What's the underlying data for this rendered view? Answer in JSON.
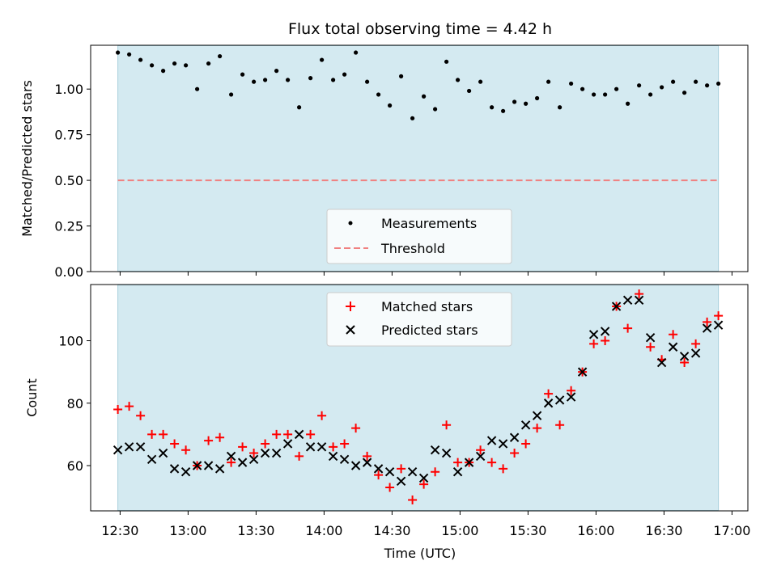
{
  "chart_data": {
    "type": "scatter",
    "title": "Flux total observing time = 4.42 h",
    "xlabel": "Time (UTC)",
    "x_ticks": [
      "12:30",
      "13:00",
      "13:30",
      "14:00",
      "14:30",
      "15:00",
      "15:30",
      "16:00",
      "16:30",
      "17:00"
    ],
    "x_tick_minutes": [
      0,
      30,
      60,
      90,
      120,
      150,
      180,
      210,
      240,
      270
    ],
    "xlim_minutes": [
      -13,
      277
    ],
    "observing_window_minutes": [
      -1,
      264
    ],
    "observing_window_color": "#d4eaf1",
    "top_panel": {
      "ylabel": "Matched/Predicted stars",
      "ylim": [
        0,
        1.24
      ],
      "y_ticks": [
        "0.00",
        "0.25",
        "0.50",
        "0.75",
        "1.00"
      ],
      "y_tick_values": [
        0,
        0.25,
        0.5,
        0.75,
        1.0
      ],
      "legend": {
        "measurements_label": "Measurements",
        "threshold_label": "Threshold",
        "position": "lower center"
      },
      "threshold": 0.5,
      "threshold_color": "#f08080",
      "measurements": {
        "x": [
          -1,
          4,
          9,
          14,
          19,
          24,
          29,
          34,
          39,
          44,
          49,
          54,
          59,
          64,
          69,
          74,
          79,
          84,
          89,
          94,
          99,
          104,
          109,
          114,
          119,
          124,
          129,
          134,
          139,
          144,
          149,
          154,
          159,
          164,
          169,
          174,
          179,
          184,
          189,
          194,
          199,
          204,
          209,
          214,
          219,
          224,
          229,
          234,
          239,
          244,
          249,
          254,
          259,
          264
        ],
        "y": [
          1.2,
          1.19,
          1.16,
          1.13,
          1.1,
          1.14,
          1.13,
          1.0,
          1.14,
          1.18,
          0.97,
          1.08,
          1.04,
          1.05,
          1.1,
          1.05,
          0.9,
          1.06,
          1.16,
          1.05,
          1.08,
          1.2,
          1.04,
          0.97,
          0.91,
          1.07,
          0.84,
          0.96,
          0.89,
          1.15,
          1.05,
          0.99,
          1.04,
          0.9,
          0.88,
          0.93,
          0.92,
          0.95,
          1.04,
          0.9,
          1.03,
          1.0,
          0.97,
          0.97,
          1.0,
          0.92,
          1.02,
          0.97,
          1.01,
          1.04,
          0.98,
          1.04,
          1.02,
          1.03
        ]
      }
    },
    "bottom_panel": {
      "ylabel": "Count",
      "ylim": [
        45.5,
        118
      ],
      "y_ticks": [
        "60",
        "80",
        "100"
      ],
      "y_tick_values": [
        60,
        80,
        100
      ],
      "legend": {
        "matched_label": "Matched stars",
        "predicted_label": "Predicted stars",
        "position": "upper center"
      },
      "matched_color": "#ff0000",
      "predicted_color": "#000000",
      "x": [
        -1,
        4,
        9,
        14,
        19,
        24,
        29,
        34,
        39,
        44,
        49,
        54,
        59,
        64,
        69,
        74,
        79,
        84,
        89,
        94,
        99,
        104,
        109,
        114,
        119,
        124,
        129,
        134,
        139,
        144,
        149,
        154,
        159,
        164,
        169,
        174,
        179,
        184,
        189,
        194,
        199,
        204,
        209,
        214,
        219,
        224,
        229,
        234,
        239,
        244,
        249,
        254,
        259,
        264
      ],
      "matched": [
        78,
        79,
        76,
        70,
        70,
        67,
        65,
        60,
        68,
        69,
        61,
        66,
        64,
        67,
        70,
        70,
        63,
        70,
        76,
        66,
        67,
        72,
        63,
        57,
        53,
        59,
        49,
        54,
        58,
        73,
        61,
        61,
        65,
        61,
        59,
        64,
        67,
        72,
        83,
        73,
        84,
        90,
        99,
        100,
        111,
        104,
        115,
        98,
        94,
        102,
        93,
        99,
        106,
        108
      ],
      "predicted": [
        65,
        66,
        66,
        62,
        64,
        59,
        58,
        60,
        60,
        59,
        63,
        61,
        62,
        64,
        64,
        67,
        70,
        66,
        66,
        63,
        62,
        60,
        61,
        59,
        58,
        55,
        58,
        56,
        65,
        64,
        58,
        61,
        63,
        68,
        67,
        69,
        73,
        76,
        80,
        81,
        82,
        90,
        102,
        103,
        111,
        113,
        113,
        101,
        93,
        98,
        95,
        96,
        104,
        105
      ]
    }
  }
}
